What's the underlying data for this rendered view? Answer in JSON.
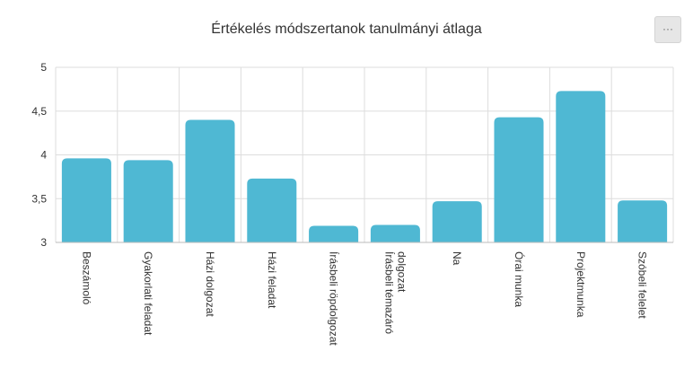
{
  "chart_title": "Értékelés módszertanok tanulmányi átlaga",
  "menu_button": {
    "label": "···"
  },
  "colors": {
    "bar": "#4fb8d3",
    "grid": "#dddddd",
    "axis": "#bbbbbb"
  },
  "chart_data": {
    "type": "bar",
    "title": "Értékelés módszertanok tanulmányi átlaga",
    "xlabel": "",
    "ylabel": "",
    "ylim": [
      3,
      5
    ],
    "y_ticks": [
      "3",
      "3,5",
      "4",
      "4,5",
      "5"
    ],
    "y_tick_values": [
      3,
      3.5,
      4,
      4.5,
      5
    ],
    "grid": true,
    "categories": [
      "Beszámoló",
      "Gyakorlati feladat",
      "Házi dolgozat",
      "Házi feladat",
      "Írásbeli röpdolgozat",
      "Írásbeli témazáró dolgozat",
      "Na",
      "Órai munka",
      "Projektmunka",
      "Szóbeli felelet"
    ],
    "category_label_lines": [
      [
        "Beszámoló"
      ],
      [
        "Gyakorlati feladat"
      ],
      [
        "Házi dolgozat"
      ],
      [
        "Házi feladat"
      ],
      [
        "Írásbeli röpdolgozat"
      ],
      [
        "Írásbeli témazáró",
        "dolgozat"
      ],
      [
        "Na"
      ],
      [
        "Órai munka"
      ],
      [
        "Projektmunka"
      ],
      [
        "Szóbeli felelet"
      ]
    ],
    "values": [
      3.96,
      3.94,
      4.4,
      3.73,
      3.19,
      3.2,
      3.47,
      4.43,
      4.73,
      3.48
    ]
  }
}
